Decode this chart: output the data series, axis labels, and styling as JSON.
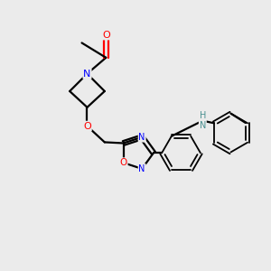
{
  "background_color": "#ebebeb",
  "bond_color": "#000000",
  "atom_colors": {
    "O": "#ff0000",
    "N": "#0000ff",
    "NH": "#4a9090",
    "C": "#000000"
  },
  "figsize": [
    3.0,
    3.0
  ],
  "dpi": 100
}
